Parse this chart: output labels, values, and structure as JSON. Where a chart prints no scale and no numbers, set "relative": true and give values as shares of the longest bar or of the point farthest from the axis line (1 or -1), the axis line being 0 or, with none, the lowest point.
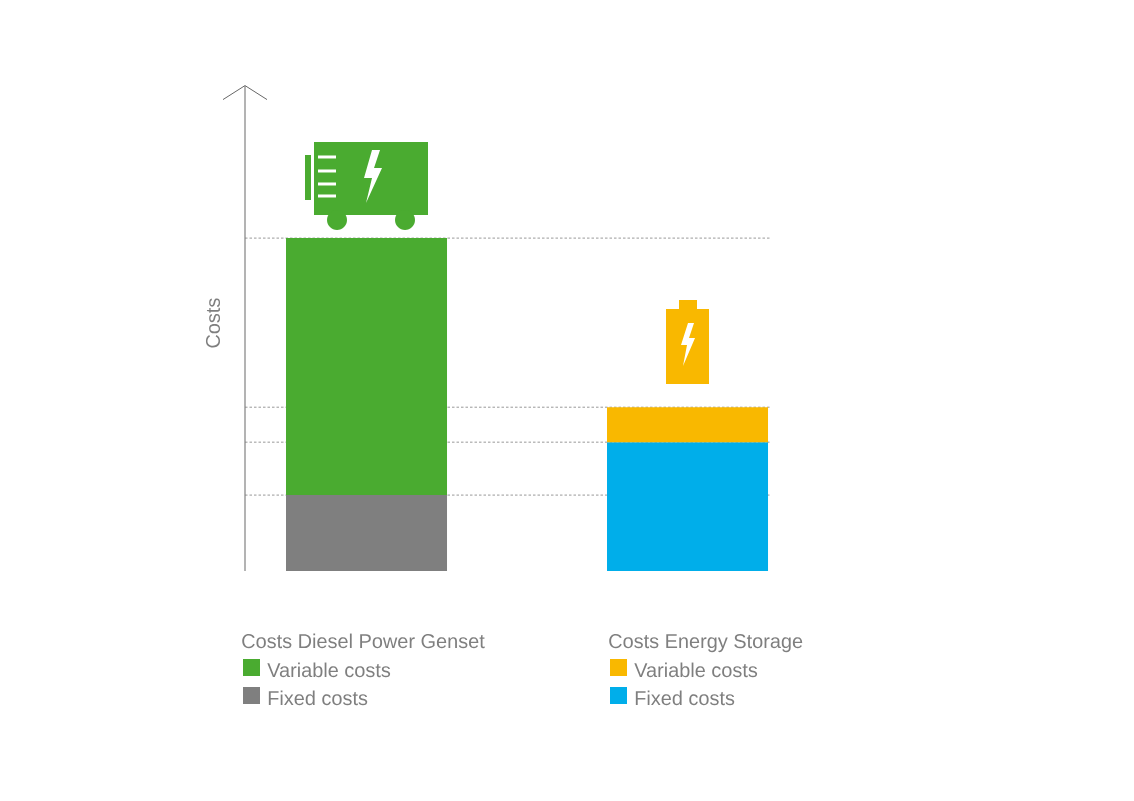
{
  "chart_data": {
    "type": "bar",
    "relative": true,
    "stacked": true,
    "ylabel": "Costs",
    "categories": [
      "Costs Diesel Power Genset",
      "Costs Energy Storage"
    ],
    "series": [
      {
        "name": "Fixed costs",
        "color": "#7f7f7f",
        "values": [
          0.228,
          null
        ]
      },
      {
        "name": "Fixed costs",
        "color": "#00aeea",
        "values": [
          null,
          0.387
        ]
      },
      {
        "name": "Variable costs",
        "color": "#4aab30",
        "values": [
          0.772,
          null
        ]
      },
      {
        "name": "Variable costs",
        "color": "#f9b800",
        "values": [
          null,
          0.105
        ]
      }
    ],
    "ref_lines": [
      {
        "axis": "y",
        "value": 1,
        "color": "#7f7f7f",
        "line_style": "dashed"
      },
      {
        "axis": "y",
        "value": 0.492,
        "color": "#7f7f7f",
        "line_style": "dashed"
      },
      {
        "axis": "y",
        "value": 0.387,
        "color": "#7f7f7f",
        "line_style": "dashed"
      },
      {
        "axis": "y",
        "value": 0.228,
        "color": "#7f7f7f",
        "line_style": "dashed"
      }
    ],
    "legend": "bottom"
  }
}
